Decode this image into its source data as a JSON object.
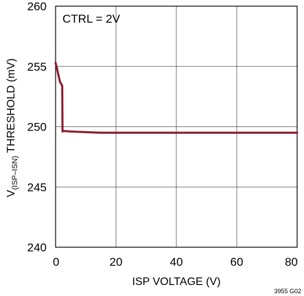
{
  "chart_data": {
    "type": "line",
    "xlabel": "ISP VOLTAGE (V)",
    "ylabel": {
      "prefix": "V",
      "subscript": "(ISP–ISN)",
      "suffix": " THRESHOLD (mV)"
    },
    "annotation": "CTRL = 2V",
    "figure_id": "3955 G02",
    "xlim": [
      0,
      80
    ],
    "ylim": [
      240,
      260
    ],
    "x_ticks": [
      0,
      20,
      40,
      60,
      80
    ],
    "y_ticks": [
      240,
      245,
      250,
      255,
      260
    ],
    "grid": true,
    "line_color": "#8b1a2e",
    "series": [
      {
        "x": [
          0,
          0.5,
          1,
          1.5,
          2.2,
          2.3,
          2.5,
          5,
          10,
          15,
          20,
          40,
          60,
          80
        ],
        "values": [
          255.3,
          254.8,
          254.2,
          253.7,
          253.4,
          249.6,
          249.65,
          249.6,
          249.55,
          249.5,
          249.5,
          249.5,
          249.5,
          249.5
        ]
      }
    ]
  }
}
